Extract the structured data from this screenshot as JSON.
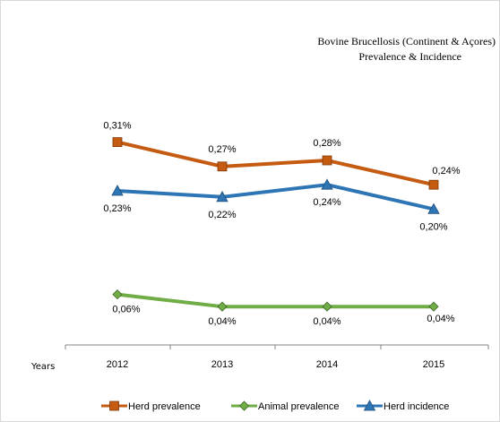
{
  "chart_data": {
    "type": "line",
    "title": "Bovine Brucellosis (Continent & Açores)",
    "subtitle": "Prevalence  & Incidence",
    "xlabel": "Years",
    "ylabel": "",
    "categories": [
      "2012",
      "2013",
      "2014",
      "2015"
    ],
    "series": [
      {
        "name": "Herd prevalence",
        "values": [
          0.31,
          0.27,
          0.28,
          0.24
        ],
        "labels": [
          "0,31%",
          "0,27%",
          "0,28%",
          "0,24%"
        ],
        "color": "#c55a11",
        "marker": "square"
      },
      {
        "name": "Animal prevalence",
        "values": [
          0.06,
          0.04,
          0.04,
          0.04
        ],
        "labels": [
          "0,06%",
          "0,04%",
          "0,04%",
          "0,04%"
        ],
        "color": "#70ad47",
        "marker": "diamond"
      },
      {
        "name": "Herd incidence",
        "values": [
          0.23,
          0.22,
          0.24,
          0.2
        ],
        "labels": [
          "0,23%",
          "0,22%",
          "0,24%",
          "0,20%"
        ],
        "color": "#2e75b6",
        "marker": "triangle"
      }
    ],
    "grid": false,
    "legend_position": "bottom"
  }
}
